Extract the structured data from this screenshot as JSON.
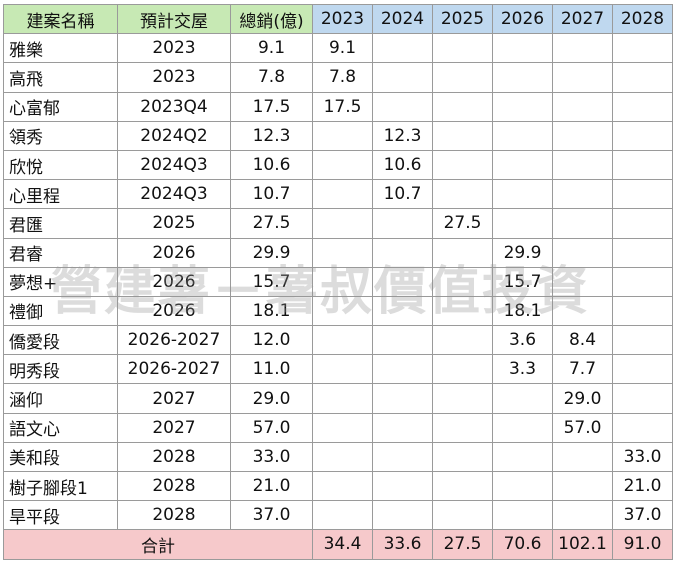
{
  "headers": [
    "建案名稱",
    "預計交屋",
    "總銷(億)",
    "2023",
    "2024",
    "2025",
    "2026",
    "2027",
    "2028"
  ],
  "rows": [
    {
      "name": "雅樂",
      "delivery": "2023",
      "total": "9.1",
      "years": [
        "9.1",
        "",
        "",
        "",
        "",
        ""
      ]
    },
    {
      "name": "高飛",
      "delivery": "2023",
      "total": "7.8",
      "years": [
        "7.8",
        "",
        "",
        "",
        "",
        ""
      ]
    },
    {
      "name": "心富郁",
      "delivery": "2023Q4",
      "total": "17.5",
      "years": [
        "17.5",
        "",
        "",
        "",
        "",
        ""
      ]
    },
    {
      "name": "領秀",
      "delivery": "2024Q2",
      "total": "12.3",
      "years": [
        "",
        "12.3",
        "",
        "",
        "",
        ""
      ]
    },
    {
      "name": "欣悅",
      "delivery": "2024Q3",
      "total": "10.6",
      "years": [
        "",
        "10.6",
        "",
        "",
        "",
        ""
      ]
    },
    {
      "name": "心里程",
      "delivery": "2024Q3",
      "total": "10.7",
      "years": [
        "",
        "10.7",
        "",
        "",
        "",
        ""
      ]
    },
    {
      "name": "君匯",
      "delivery": "2025",
      "total": "27.5",
      "years": [
        "",
        "",
        "27.5",
        "",
        "",
        ""
      ]
    },
    {
      "name": "君睿",
      "delivery": "2026",
      "total": "29.9",
      "years": [
        "",
        "",
        "",
        "29.9",
        "",
        ""
      ]
    },
    {
      "name": "夢想+",
      "delivery": "2026",
      "total": "15.7",
      "years": [
        "",
        "",
        "",
        "15.7",
        "",
        ""
      ]
    },
    {
      "name": "禮御",
      "delivery": "2026",
      "total": "18.1",
      "years": [
        "",
        "",
        "",
        "18.1",
        "",
        ""
      ]
    },
    {
      "name": "僑愛段",
      "delivery": "2026-2027",
      "total": "12.0",
      "years": [
        "",
        "",
        "",
        "3.6",
        "8.4",
        ""
      ]
    },
    {
      "name": "明秀段",
      "delivery": "2026-2027",
      "total": "11.0",
      "years": [
        "",
        "",
        "",
        "3.3",
        "7.7",
        ""
      ]
    },
    {
      "name": "涵仰",
      "delivery": "2027",
      "total": "29.0",
      "years": [
        "",
        "",
        "",
        "",
        "29.0",
        ""
      ]
    },
    {
      "name": "語文心",
      "delivery": "2027",
      "total": "57.0",
      "years": [
        "",
        "",
        "",
        "",
        "57.0",
        ""
      ]
    },
    {
      "name": "美和段",
      "delivery": "2028",
      "total": "33.0",
      "years": [
        "",
        "",
        "",
        "",
        "",
        "33.0"
      ]
    },
    {
      "name": "樹子腳段1",
      "delivery": "2028",
      "total": "21.0",
      "years": [
        "",
        "",
        "",
        "",
        "",
        "21.0"
      ]
    },
    {
      "name": "旱平段",
      "delivery": "2028",
      "total": "37.0",
      "years": [
        "",
        "",
        "",
        "",
        "",
        "37.0"
      ]
    }
  ],
  "totals": {
    "label": "合計",
    "values": [
      "34.4",
      "33.6",
      "27.5",
      "70.6",
      "102.1",
      "91.0"
    ]
  },
  "watermark": "營建薯－薯叔價值投資",
  "colors": {
    "header_main": "#c7e9b4",
    "header_year": "#bfd8ef",
    "total_row": "#f6c9cb"
  }
}
